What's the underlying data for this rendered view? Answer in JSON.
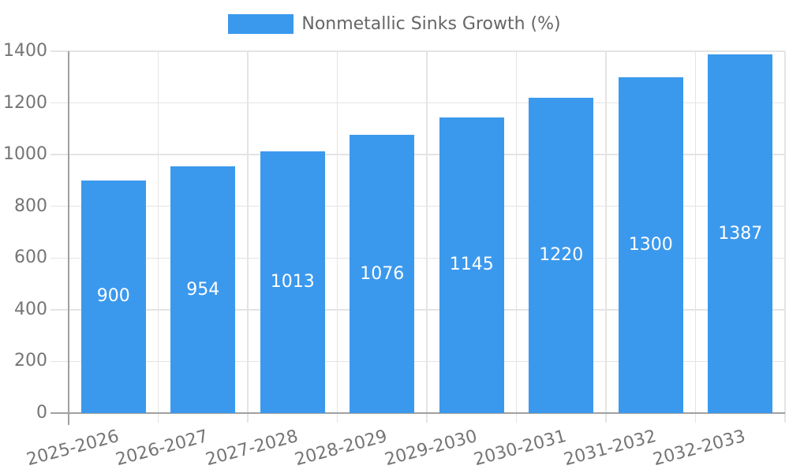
{
  "legend": {
    "label": "Nonmetallic Sinks Growth (%)",
    "swatch_color": "#3b99ed"
  },
  "chart_data": {
    "type": "bar",
    "title": "Nonmetallic Sinks Growth (%)",
    "categories": [
      "2025-2026",
      "2026-2027",
      "2027-2028",
      "2028-2029",
      "2029-2030",
      "2030-2031",
      "2031-2032",
      "2032-2033"
    ],
    "values": [
      900,
      954,
      1013,
      1076,
      1145,
      1220,
      1300,
      1387
    ],
    "value_labels": [
      "900",
      "954",
      "1013",
      "1076",
      "1145",
      "1220",
      "1300",
      "1387"
    ],
    "xlabel": "",
    "ylabel": "",
    "ylim": [
      0,
      1400
    ],
    "yticks": [
      0,
      200,
      400,
      600,
      800,
      1000,
      1200,
      1400
    ],
    "ytick_labels": [
      "0",
      "200",
      "400",
      "600",
      "800",
      "1000",
      "1200",
      "1400"
    ],
    "grid": true,
    "legend_position": "top-center",
    "x_tick_rotation_deg": -15,
    "bar_color": "#3b99ed",
    "value_label_color": "#ffffff",
    "grid_color": "#e4e4e4",
    "axis_color": "#a0a0a0",
    "tick_label_color": "#757575",
    "legend_text_color": "#666666"
  }
}
